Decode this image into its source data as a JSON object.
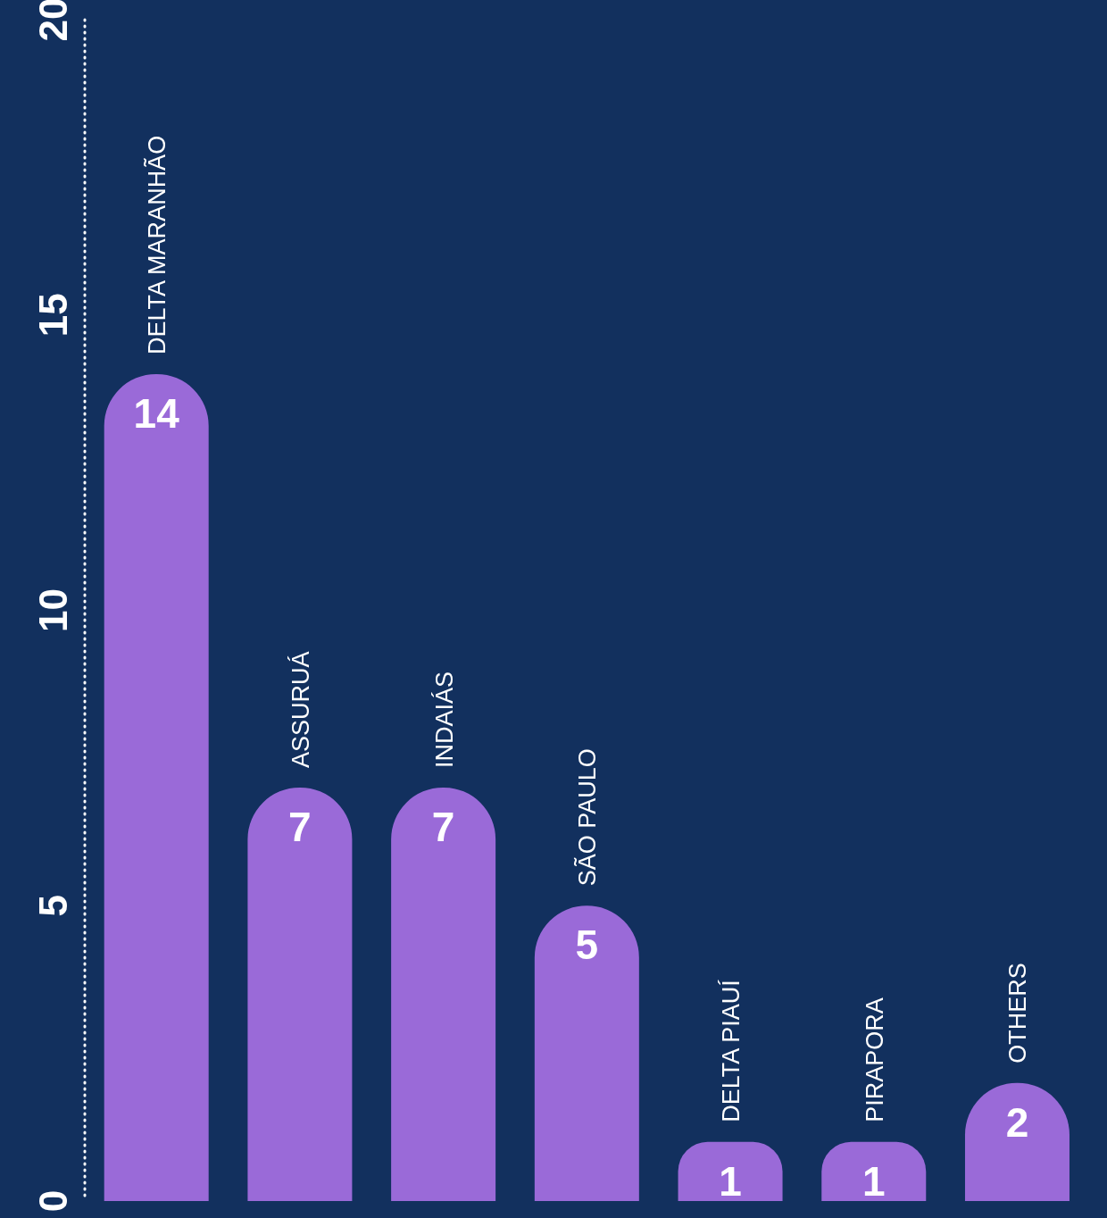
{
  "chart_data": {
    "type": "bar",
    "categories": [
      "DELTA MARANHÃO",
      "ASSURUÁ",
      "INDAIÁS",
      "SÃO PAULO",
      "DELTA PIAUÍ",
      "PIRAPORA",
      "OTHERS"
    ],
    "values": [
      14,
      7,
      7,
      5,
      1,
      1,
      2
    ],
    "color": "#9a6ad8",
    "ylim": [
      0,
      20
    ],
    "yticks": [
      0,
      5,
      10,
      15,
      20
    ],
    "data_labels": true
  }
}
